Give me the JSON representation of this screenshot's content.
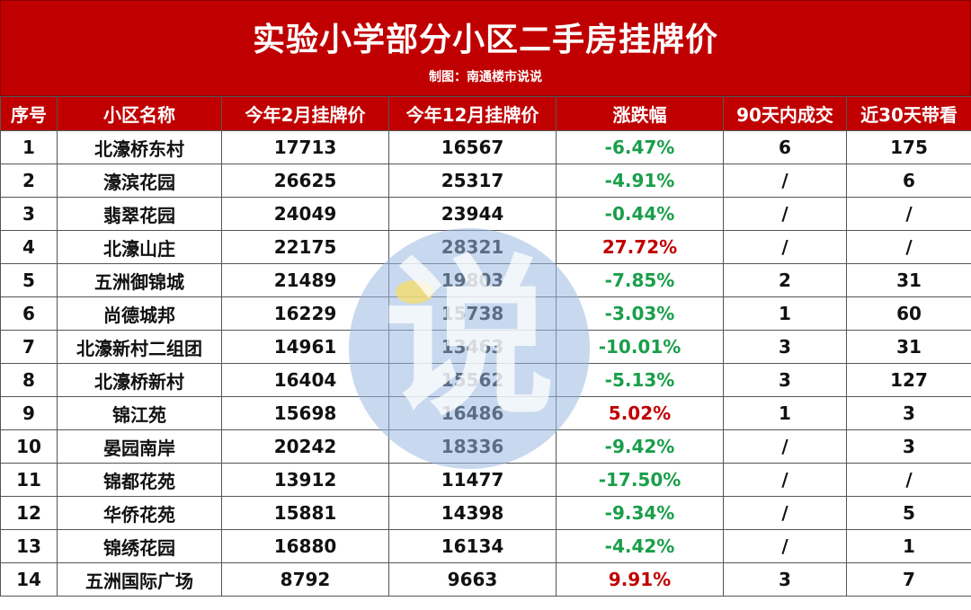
{
  "header": {
    "title": "实验小学部分小区二手房挂牌价",
    "subtitle": "制图：南通楼市说说"
  },
  "columns": [
    "序号",
    "小区名称",
    "今年2月挂牌价",
    "今年12月挂牌价",
    "涨跌幅",
    "90天内成交",
    "近30天带看"
  ],
  "rows": [
    {
      "no": "1",
      "name": "北濠桥东村",
      "feb": "17713",
      "dec": "16567",
      "change": "-6.47%",
      "trend": "down",
      "deals90": "6",
      "visits30": "175"
    },
    {
      "no": "2",
      "name": "濠滨花园",
      "feb": "26625",
      "dec": "25317",
      "change": "-4.91%",
      "trend": "down",
      "deals90": "/",
      "visits30": "6"
    },
    {
      "no": "3",
      "name": "翡翠花园",
      "feb": "24049",
      "dec": "23944",
      "change": "-0.44%",
      "trend": "down",
      "deals90": "/",
      "visits30": "/"
    },
    {
      "no": "4",
      "name": "北濠山庄",
      "feb": "22175",
      "dec": "28321",
      "change": "27.72%",
      "trend": "up",
      "deals90": "/",
      "visits30": "/"
    },
    {
      "no": "5",
      "name": "五洲御锦城",
      "feb": "21489",
      "dec": "19803",
      "change": "-7.85%",
      "trend": "down",
      "deals90": "2",
      "visits30": "31"
    },
    {
      "no": "6",
      "name": "尚德城邦",
      "feb": "16229",
      "dec": "15738",
      "change": "-3.03%",
      "trend": "down",
      "deals90": "1",
      "visits30": "60"
    },
    {
      "no": "7",
      "name": "北濠新村二组团",
      "feb": "14961",
      "dec": "13463",
      "change": "-10.01%",
      "trend": "down",
      "deals90": "3",
      "visits30": "31"
    },
    {
      "no": "8",
      "name": "北濠桥新村",
      "feb": "16404",
      "dec": "15562",
      "change": "-5.13%",
      "trend": "down",
      "deals90": "3",
      "visits30": "127"
    },
    {
      "no": "9",
      "name": "锦江苑",
      "feb": "15698",
      "dec": "16486",
      "change": "5.02%",
      "trend": "up",
      "deals90": "1",
      "visits30": "3"
    },
    {
      "no": "10",
      "name": "晏园南岸",
      "feb": "20242",
      "dec": "18336",
      "change": "-9.42%",
      "trend": "down",
      "deals90": "/",
      "visits30": "3"
    },
    {
      "no": "11",
      "name": "锦都花苑",
      "feb": "13912",
      "dec": "11477",
      "change": "-17.50%",
      "trend": "down",
      "deals90": "/",
      "visits30": "/"
    },
    {
      "no": "12",
      "name": "华侨花苑",
      "feb": "15881",
      "dec": "14398",
      "change": "-9.34%",
      "trend": "down",
      "deals90": "/",
      "visits30": "5"
    },
    {
      "no": "13",
      "name": "锦绣花园",
      "feb": "16880",
      "dec": "16134",
      "change": "-4.42%",
      "trend": "down",
      "deals90": "/",
      "visits30": "1"
    },
    {
      "no": "14",
      "name": "五洲国际广场",
      "feb": "8792",
      "dec": "9663",
      "change": "9.91%",
      "trend": "up",
      "deals90": "3",
      "visits30": "7"
    }
  ],
  "watermark": {
    "glyph": "说"
  },
  "colors": {
    "header_red": "#c00000",
    "up_red": "#c00000",
    "down_green": "#1a9e4a",
    "watermark_blue": "#9bb9e1"
  }
}
